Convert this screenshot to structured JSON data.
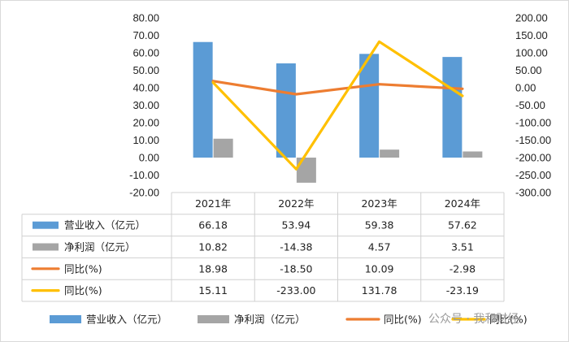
{
  "chart_data": {
    "type": "bar",
    "categories": [
      "2021年",
      "2022年",
      "2023年",
      "2024年"
    ],
    "left_axis": {
      "min": -20,
      "max": 80,
      "step": 10,
      "decimals": 2
    },
    "right_axis": {
      "min": -300,
      "max": 200,
      "step": 50,
      "decimals": 2
    },
    "grid": false,
    "legend_position": "bottom",
    "series": [
      {
        "name": "营业收入（亿元）",
        "kind": "bar",
        "axis": "left",
        "color": "#5b9bd5",
        "values": [
          66.18,
          53.94,
          59.38,
          57.62
        ],
        "labels": [
          "66.18",
          "53.94",
          "59.38",
          "57.62"
        ]
      },
      {
        "name": "净利润（亿元）",
        "kind": "bar",
        "axis": "left",
        "color": "#a5a5a5",
        "values": [
          10.82,
          -14.38,
          4.57,
          3.51
        ],
        "labels": [
          "10.82",
          "-14.38",
          "4.57",
          "3.51"
        ]
      },
      {
        "name": "同比(%)",
        "kind": "line",
        "axis": "right",
        "color": "#ed7d31",
        "values": [
          18.98,
          -18.5,
          10.09,
          -2.98
        ],
        "labels": [
          "18.98",
          "-18.50",
          "10.09",
          "-2.98"
        ]
      },
      {
        "name": "同比(%)",
        "kind": "line",
        "axis": "right",
        "color": "#ffc000",
        "values": [
          15.11,
          -233.0,
          131.78,
          -23.19
        ],
        "labels": [
          "15.11",
          "-233.00",
          "131.78",
          "-23.19"
        ]
      }
    ]
  },
  "watermark": "公众号 · 我和财经"
}
